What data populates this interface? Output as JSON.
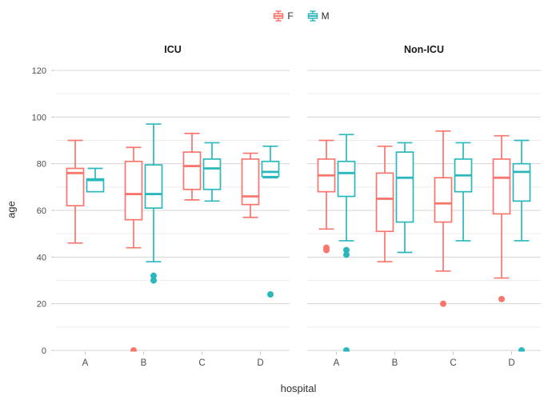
{
  "chart_data": {
    "type": "boxplot",
    "faceted": true,
    "title": "",
    "xlabel": "hospital",
    "ylabel": "age",
    "ylim": [
      0,
      120
    ],
    "yticks": [
      0,
      20,
      40,
      60,
      80,
      100,
      120
    ],
    "yticks_minor": [
      10,
      30,
      50,
      70,
      90,
      110
    ],
    "categories": [
      "A",
      "B",
      "C",
      "D"
    ],
    "grid": "horizontal-only",
    "background": "#ffffff",
    "gridline_major_color": "#d4d4d4",
    "gridline_minor_color": "#ececec",
    "tick_color": "#c9c9c9",
    "tick_label_color": "#4d4d4d",
    "legend": {
      "position": "top-center",
      "entries": [
        {
          "label": "F",
          "color": "#F8766D"
        },
        {
          "label": "M",
          "color": "#2AB8BD"
        }
      ]
    },
    "facets": [
      {
        "label": "ICU",
        "boxes": [
          {
            "hospital": "A",
            "sex": "F",
            "whislo": 46,
            "q1": 62,
            "med": 76,
            "q3": 78,
            "whishi": 90,
            "outliers": []
          },
          {
            "hospital": "A",
            "sex": "M",
            "whislo": 68,
            "q1": 68,
            "med": 73,
            "q3": 73.5,
            "whishi": 78,
            "outliers": []
          },
          {
            "hospital": "B",
            "sex": "F",
            "whislo": 44,
            "q1": 56,
            "med": 67,
            "q3": 81,
            "whishi": 87,
            "outliers": [
              0
            ]
          },
          {
            "hospital": "B",
            "sex": "M",
            "whislo": 38,
            "q1": 61,
            "med": 67,
            "q3": 79.5,
            "whishi": 97,
            "outliers": [
              32,
              30
            ]
          },
          {
            "hospital": "C",
            "sex": "F",
            "whislo": 64.5,
            "q1": 69,
            "med": 79,
            "q3": 85,
            "whishi": 93,
            "outliers": []
          },
          {
            "hospital": "C",
            "sex": "M",
            "whislo": 64,
            "q1": 69,
            "med": 78,
            "q3": 82,
            "whishi": 89,
            "outliers": []
          },
          {
            "hospital": "D",
            "sex": "F",
            "whislo": 57,
            "q1": 62.5,
            "med": 66,
            "q3": 82,
            "whishi": 84.5,
            "outliers": []
          },
          {
            "hospital": "D",
            "sex": "M",
            "whislo": 74,
            "q1": 74.5,
            "med": 76.5,
            "q3": 81,
            "whishi": 87.5,
            "outliers": [
              24
            ]
          }
        ]
      },
      {
        "label": "Non-ICU",
        "boxes": [
          {
            "hospital": "A",
            "sex": "F",
            "whislo": 52,
            "q1": 68,
            "med": 75,
            "q3": 82,
            "whishi": 90,
            "outliers": [
              44,
              43
            ]
          },
          {
            "hospital": "A",
            "sex": "M",
            "whislo": 47,
            "q1": 66,
            "med": 76,
            "q3": 81,
            "whishi": 92.5,
            "outliers": [
              43,
              41,
              0
            ]
          },
          {
            "hospital": "B",
            "sex": "F",
            "whislo": 38,
            "q1": 51,
            "med": 65,
            "q3": 76,
            "whishi": 87.5,
            "outliers": []
          },
          {
            "hospital": "B",
            "sex": "M",
            "whislo": 42,
            "q1": 55,
            "med": 74,
            "q3": 85,
            "whishi": 89,
            "outliers": []
          },
          {
            "hospital": "C",
            "sex": "F",
            "whislo": 34,
            "q1": 55,
            "med": 63,
            "q3": 74,
            "whishi": 94,
            "outliers": [
              20
            ]
          },
          {
            "hospital": "C",
            "sex": "M",
            "whislo": 47,
            "q1": 68,
            "med": 75,
            "q3": 82,
            "whishi": 89,
            "outliers": []
          },
          {
            "hospital": "D",
            "sex": "F",
            "whislo": 31,
            "q1": 58.5,
            "med": 74,
            "q3": 82,
            "whishi": 92,
            "outliers": [
              22
            ]
          },
          {
            "hospital": "D",
            "sex": "M",
            "whislo": 47,
            "q1": 64,
            "med": 76.5,
            "q3": 80,
            "whishi": 90,
            "outliers": [
              0
            ]
          }
        ]
      }
    ]
  }
}
